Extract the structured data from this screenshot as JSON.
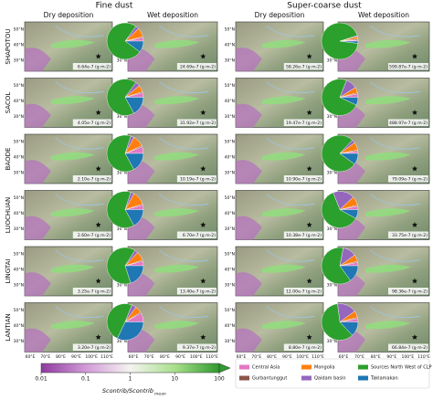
{
  "groups": [
    {
      "title": "Fine dust",
      "columns": [
        "Dry deposition",
        "Wet deposition"
      ],
      "totals": [
        [
          "6.64e-7 (g m-2)",
          "4.05e-7 (g m-2)",
          "2.10e-7 (g m-2)",
          "2.60e-7 (g m-2)",
          "3.25e-7 (g m-2)",
          "3.20e-7 (g m-2)"
        ],
        [
          "24.69e-7 (g m-2)",
          "31.92e-7 (g m-2)",
          "10.19e-7 (g m-2)",
          "6.70e-7 (g m-2)",
          "13.40e-7 (g m-2)",
          "9.37e-7 (g m-2)"
        ]
      ],
      "pies": [
        [
          3,
          1,
          8,
          3,
          75,
          10
        ],
        [
          4,
          1,
          6,
          4,
          68,
          17
        ],
        [
          6,
          1,
          10,
          3,
          63,
          17
        ],
        [
          4,
          1,
          12,
          3,
          63,
          17
        ],
        [
          4,
          1,
          8,
          3,
          64,
          20
        ],
        [
          8,
          1,
          6,
          4,
          49,
          32
        ]
      ]
    },
    {
      "title": "Super-coarse dust",
      "columns": [
        "Dry deposition",
        "Wet deposition"
      ],
      "totals": [
        [
          "58.26e-7 (g m-2)",
          "19.47e-7 (g m-2)",
          "10.90e-7 (g m-2)",
          "10.38e-7 (g m-2)",
          "12.00e-7 (g m-2)",
          "8.80e-7 (g m-2)"
        ],
        [
          "599.87e-7 (g m-2)",
          "488.97e-7 (g m-2)",
          "79.09e-7 (g m-2)",
          "33.75e-7 (g m-2)",
          "98.36e-7 (g m-2)",
          "66.84e-7 (g m-2)"
        ]
      ],
      "pies": [
        [
          1,
          1,
          2,
          1,
          93,
          2
        ],
        [
          3,
          1,
          5,
          10,
          74,
          7
        ],
        [
          2,
          1,
          7,
          3,
          77,
          10
        ],
        [
          3,
          1,
          8,
          19,
          61,
          8
        ],
        [
          3,
          1,
          6,
          12,
          63,
          15
        ],
        [
          3,
          1,
          6,
          17,
          60,
          13
        ]
      ]
    }
  ],
  "stations": [
    "SHAPOTOU",
    "SACOL",
    "BAODE",
    "LUOCHUAN",
    "LINGTAI",
    "LANTIAN"
  ],
  "lat_ticks": [
    "50°N",
    "40°N",
    "30°N"
  ],
  "lon_ticks": [
    "60°E",
    "70°E",
    "80°E",
    "90°E",
    "100°E",
    "110°E"
  ],
  "sources": [
    {
      "name": "Central Asia",
      "color": "#e377c2"
    },
    {
      "name": "Gurbantunggut",
      "color": "#8c564b"
    },
    {
      "name": "Mongolia",
      "color": "#ff7f0e"
    },
    {
      "name": "Qaidam basin",
      "color": "#9467bd"
    },
    {
      "name": "Sources North West of CLP",
      "color": "#2ca02c"
    },
    {
      "name": "Taklamakan",
      "color": "#1f77b4"
    }
  ],
  "colorbar": {
    "label": "Scontrib/Scontrib",
    "label_sub": "mean",
    "lim": [
      0.01,
      100
    ],
    "log": true,
    "ticks": [
      0.01,
      0.1,
      1,
      10,
      100
    ]
  }
}
